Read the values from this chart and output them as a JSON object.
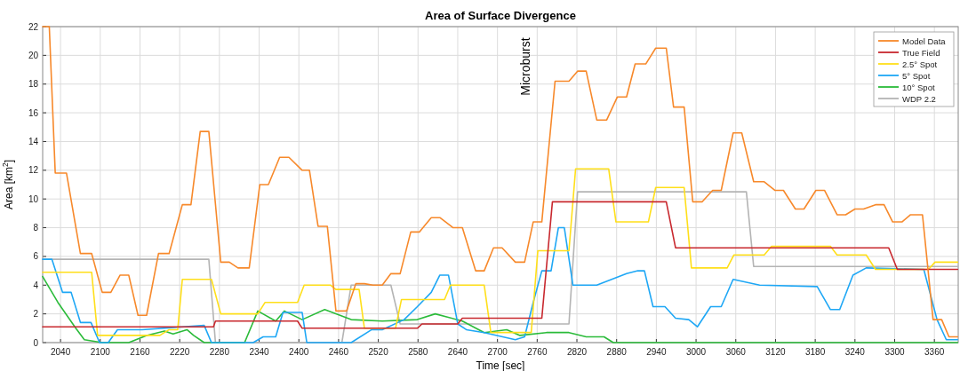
{
  "chart_data": {
    "type": "line",
    "title": "Area of Surface Divergence",
    "xlabel": "Time [sec]",
    "ylabel": "Area [km$^{2}$]",
    "xlim": [
      2013,
      3396
    ],
    "xticks": [
      2040,
      2100,
      2160,
      2220,
      2280,
      2340,
      2400,
      2460,
      2520,
      2580,
      2640,
      2700,
      2760,
      2820,
      2880,
      2940,
      3000,
      3060,
      3120,
      3180,
      3240,
      3300,
      3360
    ],
    "ylim": [
      0,
      22
    ],
    "yticks": [
      0,
      2,
      4,
      6,
      8,
      10,
      12,
      14,
      16,
      18,
      20,
      22
    ],
    "grid": true,
    "legend": "top right",
    "marker": "none",
    "line_style": "solid",
    "annotations": [
      "Microburst"
    ],
    "series": [
      {
        "name": "Model Data",
        "color": "#f7892b",
        "x": [
          2013,
          2023,
          2032,
          2049,
          2070,
          2087,
          2103,
          2116,
          2130,
          2143,
          2157,
          2170,
          2188,
          2204,
          2224,
          2237,
          2251,
          2264,
          2282,
          2295,
          2308,
          2325,
          2341,
          2354,
          2371,
          2385,
          2405,
          2416,
          2429,
          2443,
          2456,
          2472,
          2486,
          2499,
          2512,
          2526,
          2539,
          2553,
          2569,
          2582,
          2600,
          2613,
          2633,
          2647,
          2667,
          2680,
          2694,
          2707,
          2727,
          2741,
          2754,
          2767,
          2787,
          2808,
          2821,
          2834,
          2850,
          2865,
          2881,
          2895,
          2908,
          2924,
          2939,
          2955,
          2966,
          2982,
          2995,
          3009,
          3025,
          3038,
          3056,
          3069,
          3087,
          3103,
          3119,
          3132,
          3150,
          3163,
          3181,
          3194,
          3213,
          3226,
          3240,
          3253,
          3271,
          3284,
          3297,
          3311,
          3324,
          3342,
          3358,
          3371,
          3382,
          3395
        ],
        "values": [
          22,
          22,
          11.8,
          11.8,
          6.2,
          6.2,
          3.5,
          3.5,
          4.7,
          4.7,
          1.9,
          1.9,
          6.2,
          6.2,
          9.6,
          9.6,
          14.7,
          14.7,
          5.6,
          5.6,
          5.2,
          5.2,
          11,
          11,
          12.9,
          12.9,
          12,
          12,
          8.1,
          8.1,
          2.2,
          2.2,
          4.1,
          4.1,
          4,
          4,
          4.8,
          4.8,
          7.7,
          7.7,
          8.7,
          8.7,
          8,
          8,
          5,
          5,
          6.6,
          6.6,
          5.6,
          5.6,
          8.4,
          8.4,
          18.2,
          18.2,
          18.9,
          18.9,
          15.5,
          15.5,
          17.1,
          17.1,
          19.4,
          19.4,
          20.5,
          20.5,
          16.4,
          16.4,
          9.8,
          9.8,
          10.6,
          10.6,
          14.6,
          14.6,
          11.2,
          11.2,
          10.6,
          10.6,
          9.3,
          9.3,
          10.6,
          10.6,
          8.9,
          8.9,
          9.3,
          9.3,
          9.6,
          9.6,
          8.4,
          8.4,
          8.9,
          8.9,
          1.6,
          1.6,
          0.4,
          0.4
        ]
      },
      {
        "name": "True Field",
        "color": "#c8282e",
        "x": [
          2013,
          2271,
          2274,
          2398,
          2405,
          2579,
          2586,
          2640,
          2647,
          2767,
          2783,
          2955,
          2969,
          3291,
          3304,
          3395
        ],
        "values": [
          1.1,
          1.1,
          1.5,
          1.5,
          1,
          1,
          1.3,
          1.3,
          1.7,
          1.7,
          9.8,
          9.8,
          6.6,
          6.6,
          5.1,
          5.1
        ]
      },
      {
        "name": "2.5° Spot",
        "color": "#ffdf1a",
        "x": [
          2013,
          2087,
          2096,
          2190,
          2204,
          2217,
          2224,
          2268,
          2282,
          2338,
          2349,
          2398,
          2408,
          2448,
          2456,
          2491,
          2499,
          2546,
          2555,
          2620,
          2629,
          2680,
          2690,
          2751,
          2761,
          2808,
          2818,
          2868,
          2879,
          2928,
          2939,
          2982,
          2993,
          3047,
          3057,
          3103,
          3114,
          3203,
          3213,
          3257,
          3271,
          3351,
          3361,
          3395
        ],
        "values": [
          4.9,
          4.9,
          0.5,
          0.5,
          0.9,
          0.9,
          4.4,
          4.4,
          2,
          2,
          2.8,
          2.8,
          4,
          4,
          3.7,
          3.7,
          1,
          1,
          3,
          3,
          4,
          4,
          0.7,
          0.7,
          6.4,
          6.4,
          12.1,
          12.1,
          8.4,
          8.4,
          10.8,
          10.8,
          5.2,
          5.2,
          6.1,
          6.1,
          6.7,
          6.7,
          6.1,
          6.1,
          5.1,
          5.1,
          5.6,
          5.6
        ]
      },
      {
        "name": "5° Spot",
        "color": "#1ea7f5",
        "x": [
          2013,
          2027,
          2043,
          2056,
          2070,
          2086,
          2099,
          2112,
          2126,
          2163,
          2257,
          2268,
          2331,
          2346,
          2365,
          2376,
          2405,
          2412,
          2479,
          2510,
          2526,
          2559,
          2579,
          2600,
          2613,
          2626,
          2640,
          2653,
          2680,
          2727,
          2741,
          2754,
          2767,
          2781,
          2792,
          2801,
          2814,
          2850,
          2895,
          2912,
          2922,
          2935,
          2953,
          2969,
          2989,
          3002,
          3022,
          3038,
          3056,
          3076,
          3096,
          3183,
          3203,
          3217,
          3237,
          3257,
          3344,
          3364,
          3378,
          3395
        ],
        "values": [
          5.8,
          5.8,
          3.5,
          3.5,
          1.4,
          1.4,
          0,
          0,
          0.9,
          0.9,
          1.2,
          0,
          0,
          0.4,
          0.4,
          2.1,
          2.1,
          0,
          0,
          0.9,
          0.9,
          1.6,
          2.5,
          3.5,
          4.7,
          4.7,
          1.3,
          0.9,
          0.7,
          0.2,
          0.4,
          2.8,
          5,
          5,
          8,
          8,
          4,
          4,
          4.8,
          5,
          5,
          2.5,
          2.5,
          1.7,
          1.6,
          1.1,
          2.5,
          2.5,
          4.4,
          4.2,
          4,
          3.9,
          2.3,
          2.3,
          4.7,
          5.2,
          5.1,
          1.6,
          0.2,
          0.2
        ]
      },
      {
        "name": "10° Spot",
        "color": "#2bbb3a",
        "x": [
          2013,
          2036,
          2063,
          2076,
          2103,
          2143,
          2170,
          2197,
          2210,
          2231,
          2241,
          2257,
          2318,
          2338,
          2365,
          2378,
          2405,
          2439,
          2479,
          2526,
          2579,
          2606,
          2647,
          2680,
          2714,
          2734,
          2774,
          2808,
          2834,
          2861,
          2875,
          3395
        ],
        "values": [
          4.6,
          2.8,
          1,
          0.2,
          0,
          0,
          0.5,
          0.8,
          0.6,
          0.9,
          0.5,
          0,
          0,
          2.2,
          1.5,
          2.2,
          1.6,
          2.3,
          1.6,
          1.5,
          1.6,
          2,
          1.5,
          0.7,
          0.9,
          0.5,
          0.7,
          0.7,
          0.4,
          0.4,
          0,
          0
        ]
      },
      {
        "name": "WDP 2.2",
        "color": "#b4b4b4",
        "x": [
          2013,
          2264,
          2274,
          2465,
          2479,
          2539,
          2553,
          2808,
          2821,
          3076,
          3087,
          3395
        ],
        "values": [
          5.8,
          5.8,
          0,
          0,
          4,
          4,
          1.3,
          1.3,
          10.5,
          10.5,
          5.3,
          5.3
        ]
      }
    ]
  }
}
